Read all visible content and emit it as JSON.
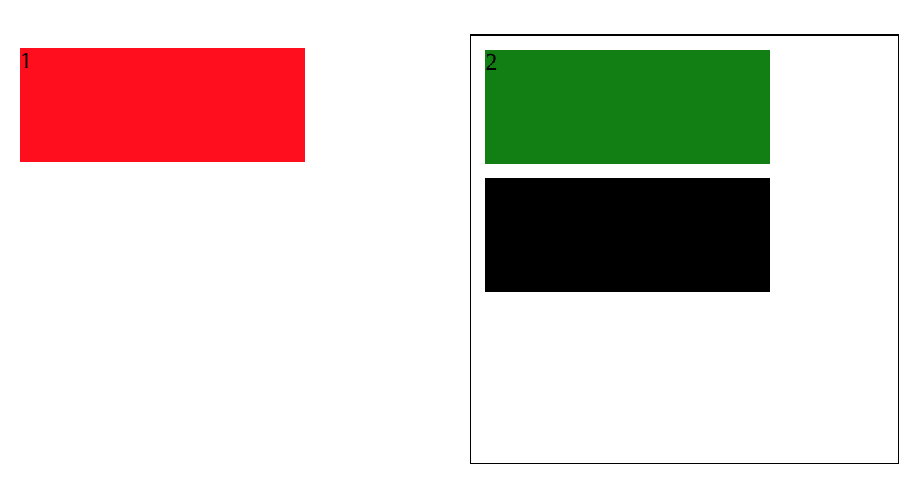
{
  "boxes": {
    "red": {
      "label": "1",
      "color": "#ff0e1e"
    },
    "green": {
      "label": "2",
      "color": "#117f13"
    },
    "black": {
      "label": "",
      "color": "#000000"
    }
  },
  "frame": {
    "border_color": "#000000"
  }
}
